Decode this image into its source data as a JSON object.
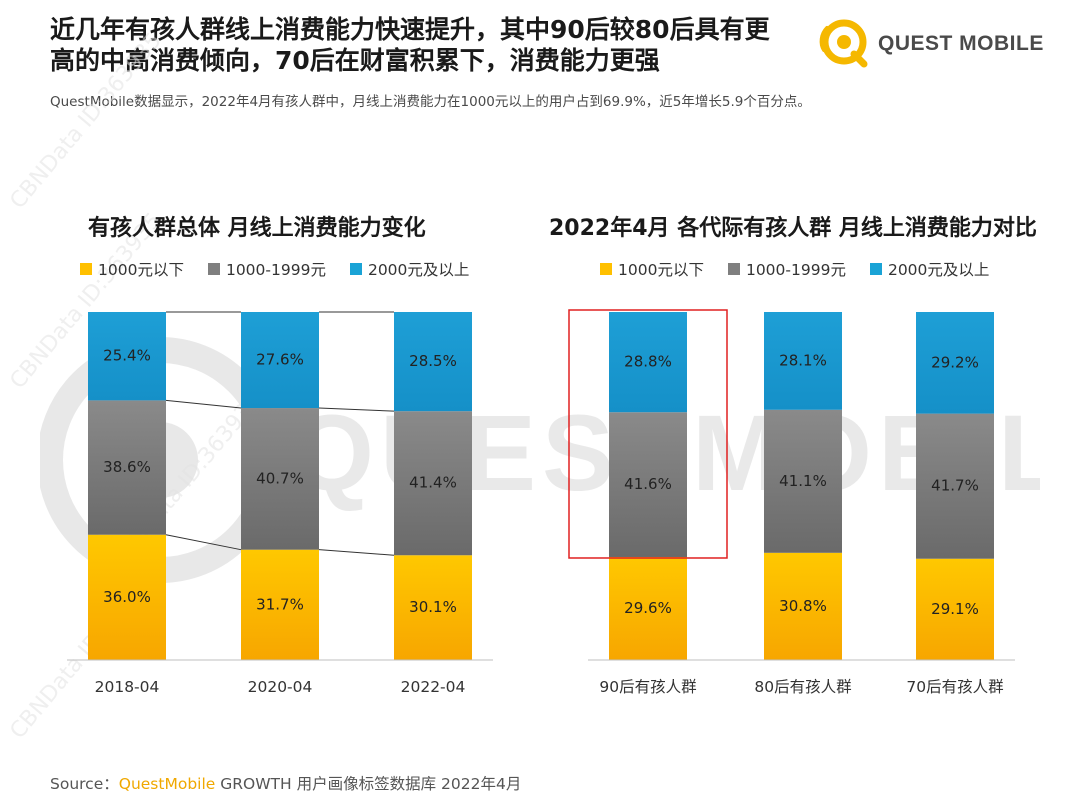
{
  "header": {
    "title_line1": "近几年有孩人群线上消费能力快速提升，其中90后较80后具有更",
    "title_line2": "高的中高消费倾向，70后在财富积累下，消费能力更强",
    "subtitle": "QuestMobile数据显示，2022年4月有孩人群中，月线上消费能力在1000元以上的用户占到69.9%，近5年增长5.9个百分点。"
  },
  "logo": {
    "brand": "QUEST MOBILE",
    "icon": "questmobile-logo-icon"
  },
  "watermark": {
    "text": "QUESTMOBILE",
    "id_text": "CBNData ID:363935"
  },
  "colors": {
    "low": "#FFC000",
    "mid": "#7F7F7F",
    "high": "#1AA3D6",
    "highlight_box": "#E02020"
  },
  "legend": [
    "1000元以下",
    "1000-1999元",
    "2000元及以上"
  ],
  "chart_data": [
    {
      "type": "bar",
      "stacked": true,
      "title": "有孩人群总体 月线上消费能力变化",
      "categories": [
        "2018-04",
        "2020-04",
        "2022-04"
      ],
      "series": [
        {
          "name": "1000元以下",
          "values": [
            36.0,
            31.7,
            30.1
          ]
        },
        {
          "name": "1000-1999元",
          "values": [
            38.6,
            40.7,
            41.4
          ]
        },
        {
          "name": "2000元及以上",
          "values": [
            25.4,
            27.6,
            28.5
          ]
        }
      ],
      "value_labels": [
        [
          "36.0%",
          "31.7%",
          "30.1%"
        ],
        [
          "38.6%",
          "40.7%",
          "41.4%"
        ],
        [
          "25.4%",
          "27.6%",
          "28.5%"
        ]
      ],
      "ylim": [
        0,
        100
      ],
      "legend_position": "top",
      "connector_lines": true
    },
    {
      "type": "bar",
      "stacked": true,
      "title": "2022年4月 各代际有孩人群 月线上消费能力对比",
      "categories": [
        "90后有孩人群",
        "80后有孩人群",
        "70后有孩人群"
      ],
      "series": [
        {
          "name": "1000元以下",
          "values": [
            29.6,
            30.8,
            29.1
          ]
        },
        {
          "name": "1000-1999元",
          "values": [
            41.6,
            41.1,
            41.7
          ]
        },
        {
          "name": "2000元及以上",
          "values": [
            28.8,
            28.1,
            29.2
          ]
        }
      ],
      "value_labels": [
        [
          "29.6%",
          "30.8%",
          "29.1%"
        ],
        [
          "41.6%",
          "41.1%",
          "41.7%"
        ],
        [
          "28.8%",
          "28.1%",
          "29.2%"
        ]
      ],
      "ylim": [
        0,
        100
      ],
      "legend_position": "top",
      "highlight_category": "90后有孩人群"
    }
  ],
  "source": {
    "prefix": "Source：",
    "brand": "QuestMobile",
    "rest": " GROWTH 用户画像标签数据库 2022年4月"
  }
}
